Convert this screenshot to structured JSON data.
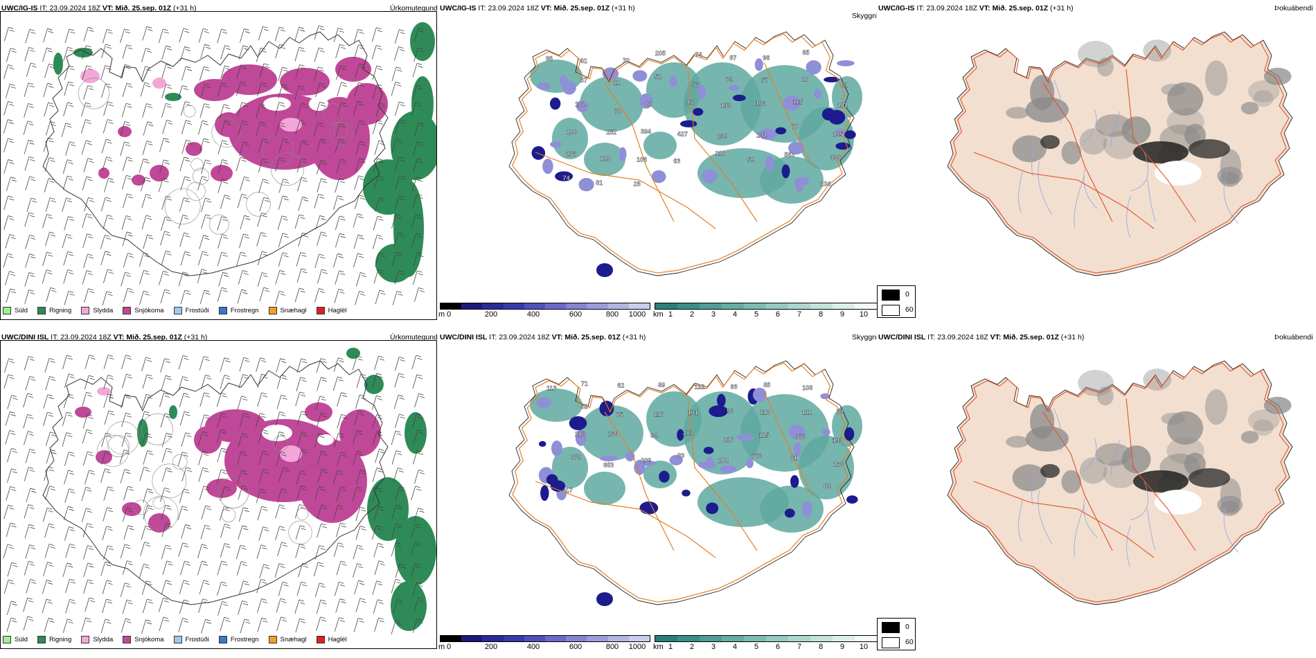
{
  "rows": [
    {
      "model": "UWC/IG-IS",
      "it_label": "IT:",
      "it_value": "23.09.2024 18Z",
      "vt_label": "VT:",
      "vt_value": "Mið. 25.sep. 01Z",
      "lead": "(+31 h)",
      "panel1_right_title": "Úrkomutegund",
      "panel2_right_title": "Skyggni",
      "panel3_right_title": "Þokuábendi",
      "cloud_labels": [
        "86",
        "61",
        "70",
        "205",
        "74",
        "87",
        "96",
        "85",
        "61",
        "57",
        "11",
        "52",
        "56",
        "74",
        "57",
        "10",
        "102",
        "182",
        "70",
        "81",
        "16",
        "159",
        "196",
        "115",
        "145",
        "108",
        "152",
        "394",
        "427",
        "239",
        "142",
        "70",
        "338",
        "276",
        "120",
        "106",
        "63",
        "110",
        "59",
        "563",
        "104",
        "74",
        "81",
        "28"
      ]
    },
    {
      "model": "UWC/DINI ISL",
      "it_label": "IT:",
      "it_value": "23.09.2024 18Z",
      "vt_label": "VT:",
      "vt_value": "Mið. 25.sep. 01Z",
      "lead": "(+31 h)",
      "panel1_right_title": "Úrkomutegund",
      "panel2_right_title": "Skyggni",
      "panel3_right_title": "Þokuábendi",
      "cloud_labels": [
        "113",
        "71",
        "62",
        "89",
        "122",
        "93",
        "85",
        "108",
        "73",
        "52",
        "75",
        "117",
        "101",
        "93",
        "118",
        "111",
        "193",
        "216",
        "139",
        "64",
        "211",
        "218",
        "125",
        "373",
        "168",
        "979",
        "953",
        "209",
        "83",
        "102",
        "773",
        "81",
        "84",
        "17"
      ]
    }
  ],
  "precip_legend": [
    {
      "label": "Súld",
      "color": "#9ef08e"
    },
    {
      "label": "Rigning",
      "color": "#2e8b57"
    },
    {
      "label": "Slydda",
      "color": "#f2a7d8"
    },
    {
      "label": "Snjókoma",
      "color": "#c04898"
    },
    {
      "label": "Frostúði",
      "color": "#9ec8f0"
    },
    {
      "label": "Frostregn",
      "color": "#3a78c8"
    },
    {
      "label": "Snæhagl",
      "color": "#f0a020"
    },
    {
      "label": "Haglél",
      "color": "#e02020"
    }
  ],
  "cloudbase_colorbar": {
    "unit": "m",
    "ticks": [
      "0",
      "200",
      "400",
      "600",
      "800",
      "1000"
    ],
    "colors": [
      "#000000",
      "#1a1a7a",
      "#2a2a9a",
      "#3838ae",
      "#5050bc",
      "#6a6ac8",
      "#8484d0",
      "#9c9cda",
      "#b4b4e4",
      "#cccced"
    ]
  },
  "visibility_colorbar": {
    "unit": "km",
    "ticks": [
      "1",
      "2",
      "3",
      "4",
      "5",
      "6",
      "7",
      "8",
      "9",
      "10"
    ],
    "colors": [
      "#2a7f7a",
      "#3a8f88",
      "#4f9e96",
      "#65ada4",
      "#7cbcb2",
      "#94cac1",
      "#acd7cf",
      "#c4e3dd",
      "#dcefeb",
      "#f4faf9"
    ]
  },
  "fog_colorbar": {
    "labels": [
      "0",
      "60"
    ],
    "colors": [
      "#000000",
      "#ffffff"
    ]
  },
  "colors": {
    "rain": "#2e8b57",
    "snow": "#c04898",
    "sleet": "#f2a7d8",
    "cloud_dark": "#1c1c8e",
    "cloud_light": "#8f8fd8",
    "visibility": "#5fa9a0",
    "roads": "#e67e22",
    "fog_land": "#f2dfcf",
    "fog_roads": "#e0502a",
    "fog_rivers": "#8ea4e8"
  }
}
